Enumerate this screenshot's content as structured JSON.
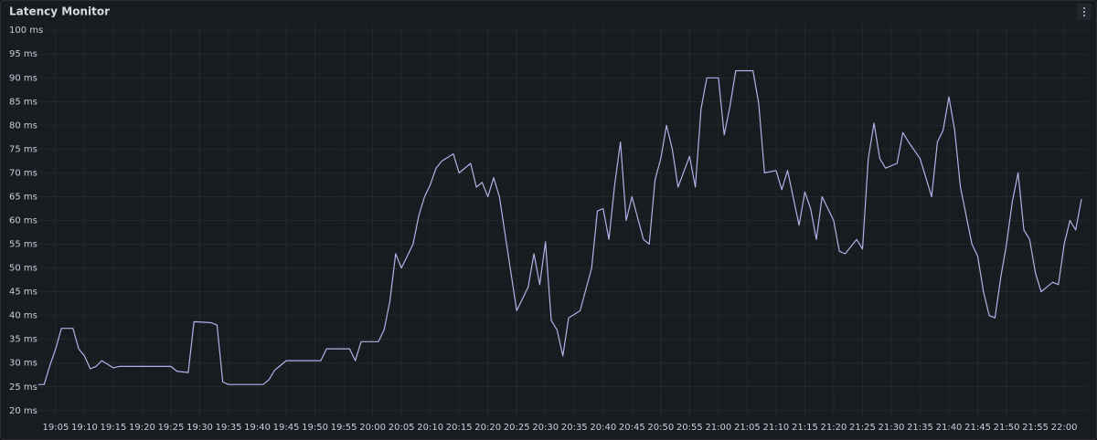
{
  "chart_data": {
    "type": "line",
    "title": "Latency Monitor",
    "grid": true,
    "color": "#b4b1e8",
    "ylim": [
      19,
      101
    ],
    "yticks": [
      {
        "value": 20,
        "label": "20 ms"
      },
      {
        "value": 25,
        "label": "25 ms"
      },
      {
        "value": 30,
        "label": "30 ms"
      },
      {
        "value": 35,
        "label": "35 ms"
      },
      {
        "value": 40,
        "label": "40 ms"
      },
      {
        "value": 45,
        "label": "45 ms"
      },
      {
        "value": 50,
        "label": "50 ms"
      },
      {
        "value": 55,
        "label": "55 ms"
      },
      {
        "value": 60,
        "label": "60 ms"
      },
      {
        "value": 65,
        "label": "65 ms"
      },
      {
        "value": 70,
        "label": "70 ms"
      },
      {
        "value": 75,
        "label": "75 ms"
      },
      {
        "value": 80,
        "label": "80 ms"
      },
      {
        "value": 85,
        "label": "85 ms"
      },
      {
        "value": 90,
        "label": "90 ms"
      },
      {
        "value": 95,
        "label": "95 ms"
      },
      {
        "value": 100,
        "label": "100 ms"
      }
    ],
    "xlim": [
      "19:02",
      "22:03"
    ],
    "xticks": [
      "19:05",
      "19:10",
      "19:15",
      "19:20",
      "19:25",
      "19:30",
      "19:35",
      "19:40",
      "19:45",
      "19:50",
      "19:55",
      "20:00",
      "20:05",
      "20:10",
      "20:15",
      "20:20",
      "20:25",
      "20:30",
      "20:35",
      "20:40",
      "20:45",
      "20:50",
      "20:55",
      "21:00",
      "21:05",
      "21:10",
      "21:15",
      "21:20",
      "21:25",
      "21:30",
      "21:35",
      "21:40",
      "21:45",
      "21:50",
      "21:55",
      "22:00"
    ],
    "x": [
      "19:02",
      "19:03",
      "19:04",
      "19:05",
      "19:06",
      "19:08",
      "19:09",
      "19:10",
      "19:11",
      "19:12",
      "19:13",
      "19:15",
      "19:16",
      "19:25",
      "19:26",
      "19:28",
      "19:29",
      "19:32",
      "19:33",
      "19:34",
      "19:35",
      "19:41",
      "19:42",
      "19:43",
      "19:45",
      "19:51",
      "19:52",
      "19:56",
      "19:57",
      "19:58",
      "20:01",
      "20:02",
      "20:03",
      "20:04",
      "20:05",
      "20:07",
      "20:08",
      "20:09",
      "20:10",
      "20:11",
      "20:12",
      "20:14",
      "20:15",
      "20:17",
      "20:18",
      "20:19",
      "20:20",
      "20:21",
      "20:22",
      "20:23",
      "20:24",
      "20:25",
      "20:27",
      "20:28",
      "20:29",
      "20:30",
      "20:31",
      "20:32",
      "20:33",
      "20:34",
      "20:36",
      "20:38",
      "20:39",
      "20:40",
      "20:41",
      "20:42",
      "20:43",
      "20:44",
      "20:45",
      "20:47",
      "20:48",
      "20:49",
      "20:50",
      "20:51",
      "20:52",
      "20:53",
      "20:55",
      "20:56",
      "20:57",
      "20:58",
      "21:00",
      "21:01",
      "21:02",
      "21:03",
      "21:06",
      "21:07",
      "21:08",
      "21:10",
      "21:11",
      "21:12",
      "21:14",
      "21:15",
      "21:16",
      "21:17",
      "21:18",
      "21:20",
      "21:21",
      "21:22",
      "21:24",
      "21:25",
      "21:26",
      "21:27",
      "21:28",
      "21:29",
      "21:31",
      "21:32",
      "21:33",
      "21:35",
      "21:37",
      "21:38",
      "21:39",
      "21:40",
      "21:41",
      "21:42",
      "21:44",
      "21:45",
      "21:46",
      "21:47",
      "21:48",
      "21:49",
      "21:50",
      "21:51",
      "21:52",
      "21:53",
      "21:54",
      "21:55",
      "21:56",
      "21:58",
      "21:59",
      "22:00",
      "22:01",
      "22:02",
      "22:03"
    ],
    "values": [
      25.5,
      25.5,
      29.5,
      33,
      37.3,
      37.3,
      33,
      31.5,
      28.8,
      29.3,
      30.5,
      29,
      29.3,
      29.3,
      28.3,
      28,
      38.7,
      38.5,
      38,
      26,
      25.5,
      25.5,
      26.5,
      28.5,
      30.5,
      30.5,
      33,
      33,
      30.5,
      34.5,
      34.5,
      37,
      43,
      53,
      50,
      55,
      61,
      65,
      67.5,
      71,
      72.5,
      74,
      70,
      72,
      67,
      68,
      65,
      69,
      65,
      57,
      49,
      41,
      46,
      53,
      46.5,
      55.5,
      39,
      37,
      31.5,
      39.5,
      41,
      50,
      62,
      62.5,
      56,
      67.5,
      76.5,
      60,
      65,
      56,
      55,
      68.5,
      73,
      80,
      75,
      67,
      73.5,
      67,
      83.5,
      90,
      90,
      78,
      84,
      91.5,
      91.5,
      84.5,
      70,
      70.5,
      66.5,
      70.5,
      59,
      66,
      62.5,
      56,
      65,
      60,
      53.5,
      53,
      56,
      54,
      73,
      80.5,
      73,
      71,
      72,
      78.5,
      76.5,
      73,
      65,
      76.5,
      79,
      86,
      79,
      67,
      55,
      52.5,
      45,
      40,
      39.5,
      48,
      55,
      64,
      70,
      58,
      56,
      49,
      45,
      47,
      46.5,
      55,
      60,
      58,
      64.5
    ]
  }
}
